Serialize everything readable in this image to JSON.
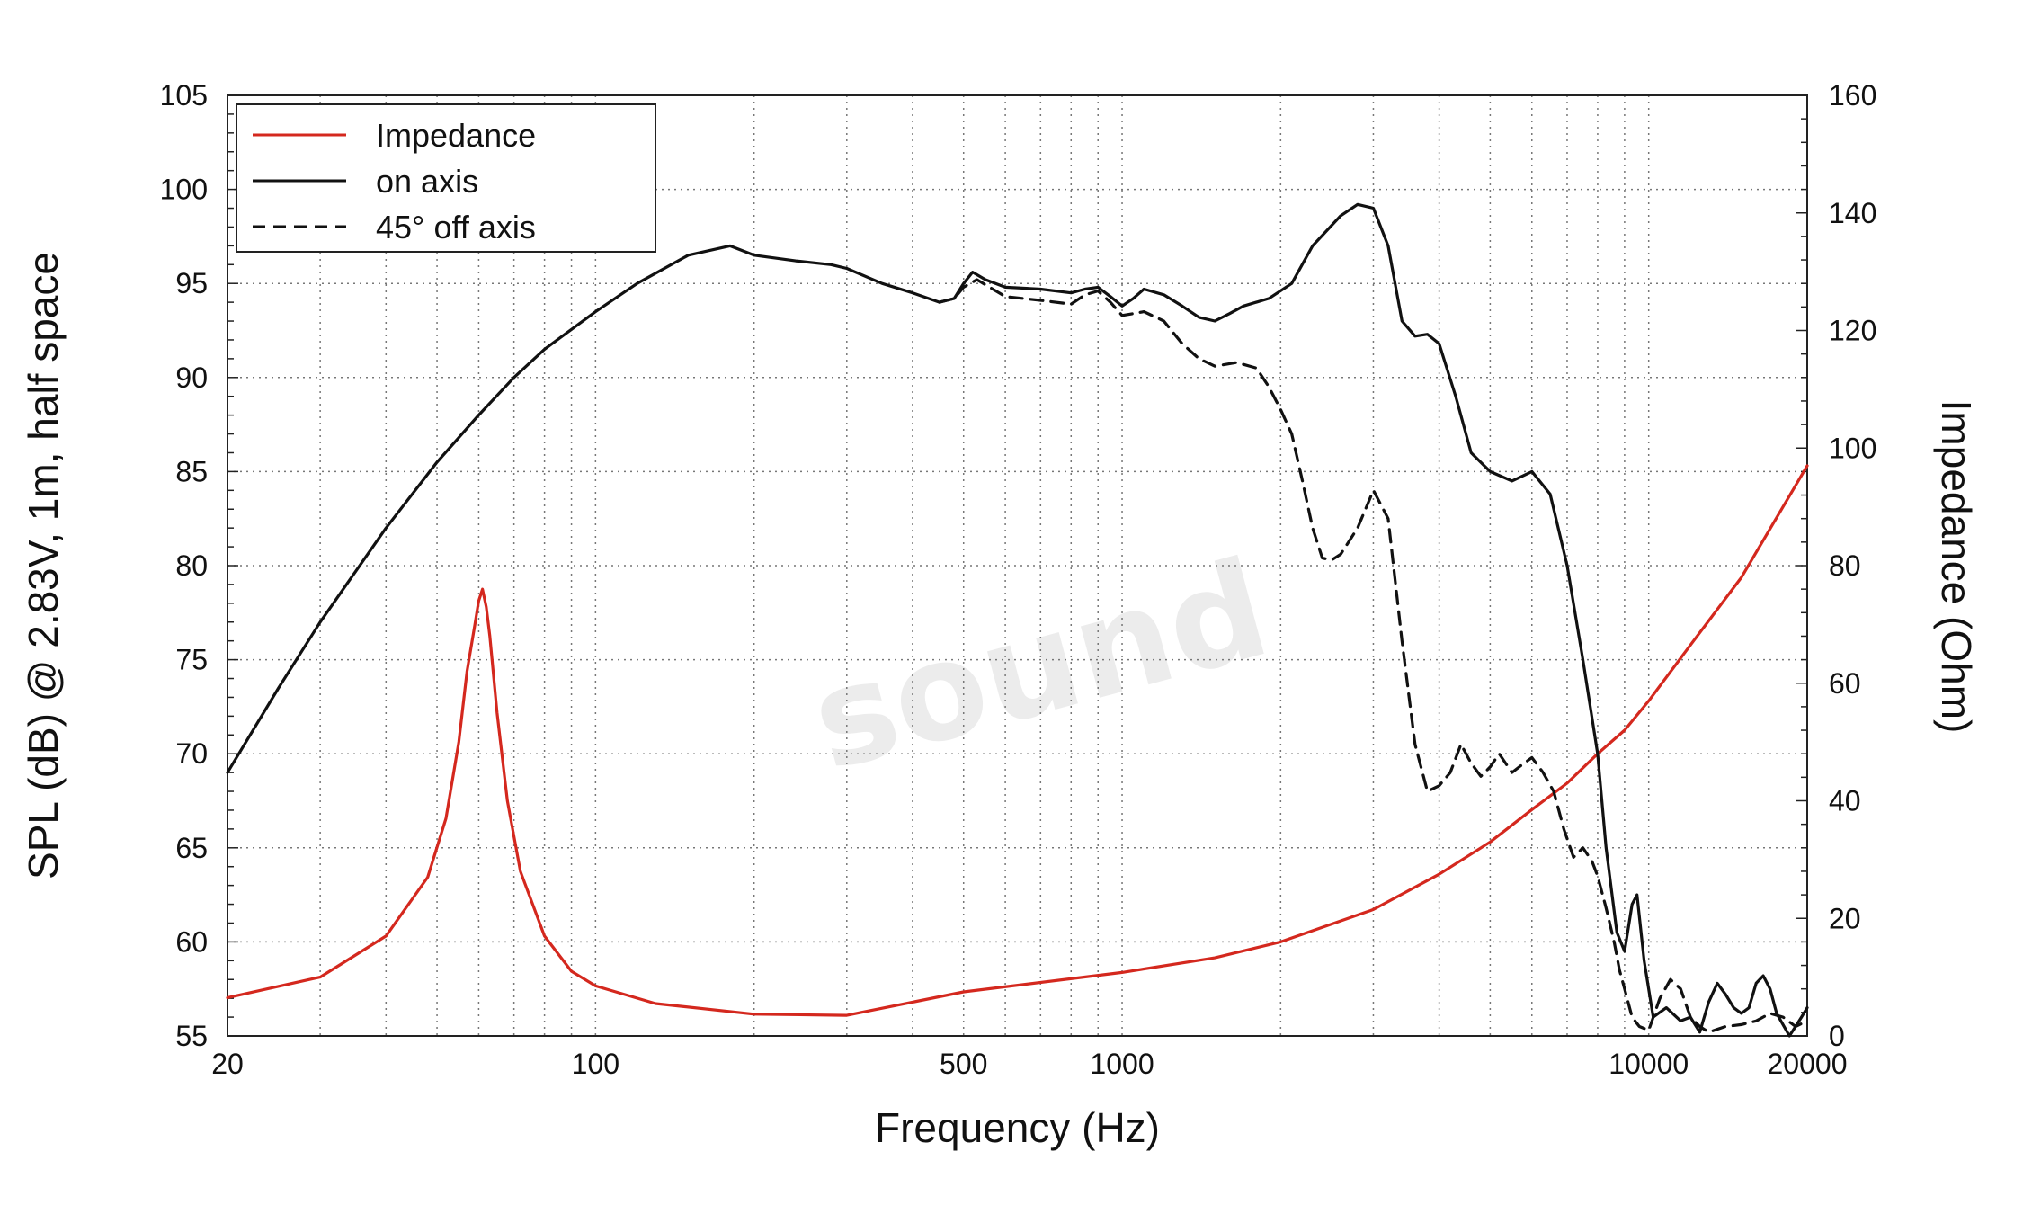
{
  "chart_data": {
    "type": "line",
    "xlabel": "Frequency (Hz)",
    "ylabel": "SPL (dB) @ 2.83V, 1m, half space",
    "y2label": "Impedance (Ohm)",
    "xscale": "log",
    "xlim": [
      20,
      20000
    ],
    "ylim": [
      55,
      105
    ],
    "y2lim": [
      0,
      160
    ],
    "x_tick_labels": [
      "20",
      "100",
      "500",
      "1000",
      "10000",
      "20000"
    ],
    "y_tick_labels": [
      "55",
      "60",
      "65",
      "70",
      "75",
      "80",
      "85",
      "90",
      "95",
      "100",
      "105"
    ],
    "y2_tick_labels": [
      "0",
      "20",
      "40",
      "60",
      "80",
      "100",
      "120",
      "140",
      "160"
    ],
    "grid": true,
    "legend_position": "top-left",
    "watermark": "sound",
    "series": [
      {
        "name": "Impedance",
        "axis": "right",
        "color": "#d4281e",
        "dash": "solid",
        "points": [
          [
            20,
            6.5
          ],
          [
            30,
            10
          ],
          [
            40,
            17
          ],
          [
            48,
            27
          ],
          [
            52,
            37
          ],
          [
            55,
            50
          ],
          [
            57,
            62
          ],
          [
            59,
            70
          ],
          [
            60,
            74
          ],
          [
            61,
            76
          ],
          [
            62,
            73
          ],
          [
            63,
            68
          ],
          [
            65,
            55
          ],
          [
            68,
            40
          ],
          [
            72,
            28
          ],
          [
            80,
            17
          ],
          [
            90,
            11
          ],
          [
            100,
            8.5
          ],
          [
            130,
            5.5
          ],
          [
            200,
            3.7
          ],
          [
            300,
            3.5
          ],
          [
            500,
            7.5
          ],
          [
            1000,
            10.8
          ],
          [
            1500,
            13.3
          ],
          [
            2000,
            16
          ],
          [
            3000,
            21.5
          ],
          [
            4000,
            27.5
          ],
          [
            5000,
            33
          ],
          [
            6000,
            38.5
          ],
          [
            7000,
            43
          ],
          [
            8000,
            48
          ],
          [
            9000,
            52
          ],
          [
            10000,
            57
          ],
          [
            12000,
            66.5
          ],
          [
            15000,
            78
          ],
          [
            20000,
            97
          ]
        ]
      },
      {
        "name": "on axis",
        "axis": "left",
        "color": "#111111",
        "dash": "solid",
        "points": [
          [
            20,
            69
          ],
          [
            25,
            73.5
          ],
          [
            30,
            77
          ],
          [
            40,
            82
          ],
          [
            50,
            85.5
          ],
          [
            60,
            88
          ],
          [
            70,
            90
          ],
          [
            80,
            91.5
          ],
          [
            100,
            93.5
          ],
          [
            120,
            95
          ],
          [
            150,
            96.5
          ],
          [
            180,
            97
          ],
          [
            200,
            96.5
          ],
          [
            240,
            96.2
          ],
          [
            280,
            96
          ],
          [
            300,
            95.8
          ],
          [
            350,
            95
          ],
          [
            400,
            94.5
          ],
          [
            450,
            94
          ],
          [
            480,
            94.2
          ],
          [
            500,
            95
          ],
          [
            520,
            95.6
          ],
          [
            550,
            95.2
          ],
          [
            600,
            94.8
          ],
          [
            700,
            94.7
          ],
          [
            800,
            94.5
          ],
          [
            850,
            94.7
          ],
          [
            900,
            94.8
          ],
          [
            950,
            94.3
          ],
          [
            1000,
            93.8
          ],
          [
            1050,
            94.2
          ],
          [
            1100,
            94.7
          ],
          [
            1200,
            94.4
          ],
          [
            1300,
            93.8
          ],
          [
            1400,
            93.2
          ],
          [
            1500,
            93
          ],
          [
            1600,
            93.4
          ],
          [
            1700,
            93.8
          ],
          [
            1900,
            94.2
          ],
          [
            2100,
            95
          ],
          [
            2300,
            97
          ],
          [
            2600,
            98.6
          ],
          [
            2800,
            99.2
          ],
          [
            3000,
            99
          ],
          [
            3200,
            97
          ],
          [
            3400,
            93
          ],
          [
            3600,
            92.2
          ],
          [
            3800,
            92.3
          ],
          [
            4000,
            91.8
          ],
          [
            4300,
            89
          ],
          [
            4600,
            86
          ],
          [
            5000,
            85
          ],
          [
            5500,
            84.5
          ],
          [
            6000,
            85
          ],
          [
            6500,
            83.8
          ],
          [
            7000,
            80
          ],
          [
            7500,
            75
          ],
          [
            8000,
            70
          ],
          [
            8300,
            65
          ],
          [
            8700,
            60.5
          ],
          [
            9000,
            59.5
          ],
          [
            9300,
            62
          ],
          [
            9500,
            62.5
          ],
          [
            9800,
            59
          ],
          [
            10200,
            56
          ],
          [
            10800,
            56.5
          ],
          [
            11500,
            55.8
          ],
          [
            12000,
            56
          ],
          [
            12500,
            55.2
          ],
          [
            13000,
            56.8
          ],
          [
            13500,
            57.8
          ],
          [
            14000,
            57.2
          ],
          [
            14500,
            56.5
          ],
          [
            15000,
            56.2
          ],
          [
            15500,
            56.5
          ],
          [
            16000,
            57.8
          ],
          [
            16500,
            58.2
          ],
          [
            17000,
            57.5
          ],
          [
            17500,
            56.2
          ],
          [
            18500,
            55
          ],
          [
            19000,
            55.5
          ],
          [
            19500,
            56
          ],
          [
            20000,
            56.5
          ]
        ]
      },
      {
        "name": "45° off axis",
        "axis": "left",
        "color": "#111111",
        "dash": "dashed",
        "points": [
          [
            450,
            94
          ],
          [
            480,
            94.2
          ],
          [
            500,
            94.8
          ],
          [
            530,
            95.2
          ],
          [
            560,
            94.8
          ],
          [
            600,
            94.3
          ],
          [
            700,
            94.1
          ],
          [
            800,
            93.9
          ],
          [
            850,
            94.4
          ],
          [
            900,
            94.6
          ],
          [
            950,
            94
          ],
          [
            1000,
            93.3
          ],
          [
            1050,
            93.4
          ],
          [
            1100,
            93.5
          ],
          [
            1200,
            93
          ],
          [
            1300,
            91.8
          ],
          [
            1400,
            91
          ],
          [
            1500,
            90.6
          ],
          [
            1650,
            90.8
          ],
          [
            1800,
            90.5
          ],
          [
            1900,
            89.5
          ],
          [
            2000,
            88.3
          ],
          [
            2100,
            87
          ],
          [
            2200,
            84.5
          ],
          [
            2300,
            82
          ],
          [
            2400,
            80.4
          ],
          [
            2500,
            80.3
          ],
          [
            2600,
            80.6
          ],
          [
            2800,
            82
          ],
          [
            3000,
            84
          ],
          [
            3200,
            82.5
          ],
          [
            3400,
            76
          ],
          [
            3600,
            70.5
          ],
          [
            3800,
            68
          ],
          [
            4000,
            68.3
          ],
          [
            4200,
            69
          ],
          [
            4400,
            70.5
          ],
          [
            4600,
            69.5
          ],
          [
            4800,
            68.8
          ],
          [
            5000,
            69.3
          ],
          [
            5200,
            70
          ],
          [
            5500,
            69
          ],
          [
            5800,
            69.5
          ],
          [
            6000,
            69.8
          ],
          [
            6300,
            69
          ],
          [
            6600,
            68
          ],
          [
            6900,
            66
          ],
          [
            7200,
            64.5
          ],
          [
            7500,
            65
          ],
          [
            7800,
            64.3
          ],
          [
            8000,
            63.5
          ],
          [
            8300,
            61.8
          ],
          [
            8600,
            60
          ],
          [
            8800,
            58.5
          ],
          [
            9000,
            57.5
          ],
          [
            9300,
            56
          ],
          [
            9600,
            55.5
          ],
          [
            10000,
            55.3
          ],
          [
            10500,
            57
          ],
          [
            11000,
            58
          ],
          [
            11500,
            57.5
          ],
          [
            12000,
            56
          ],
          [
            12500,
            55.5
          ],
          [
            13000,
            55.2
          ],
          [
            14000,
            55.5
          ],
          [
            15000,
            55.6
          ],
          [
            16000,
            55.8
          ],
          [
            17000,
            56.2
          ],
          [
            18000,
            56
          ],
          [
            19000,
            55.5
          ],
          [
            20000,
            55.8
          ]
        ]
      }
    ]
  }
}
